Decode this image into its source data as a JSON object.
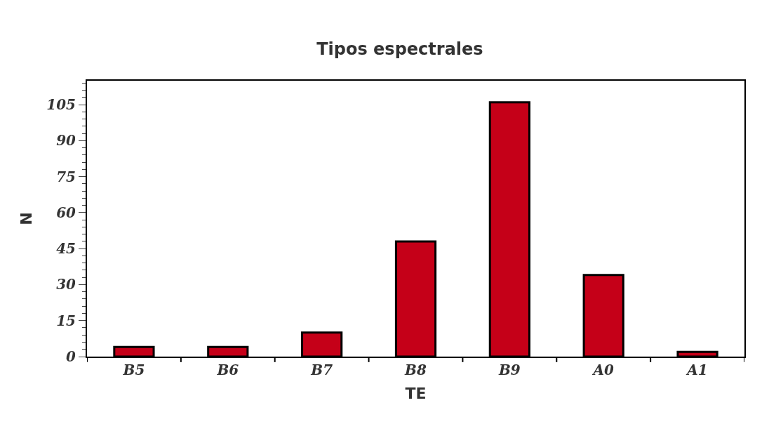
{
  "chart_data": {
    "type": "bar",
    "title": "Tipos espectrales",
    "xlabel": "TE",
    "ylabel": "N",
    "categories": [
      "B5",
      "B6",
      "B7",
      "B8",
      "B9",
      "A0",
      "A1"
    ],
    "values": [
      4,
      4,
      10,
      48,
      106,
      34,
      2
    ],
    "color": "#c50018",
    "ylim": [
      0,
      115
    ],
    "yticks": [
      0,
      15,
      30,
      45,
      60,
      75,
      90,
      105
    ]
  }
}
